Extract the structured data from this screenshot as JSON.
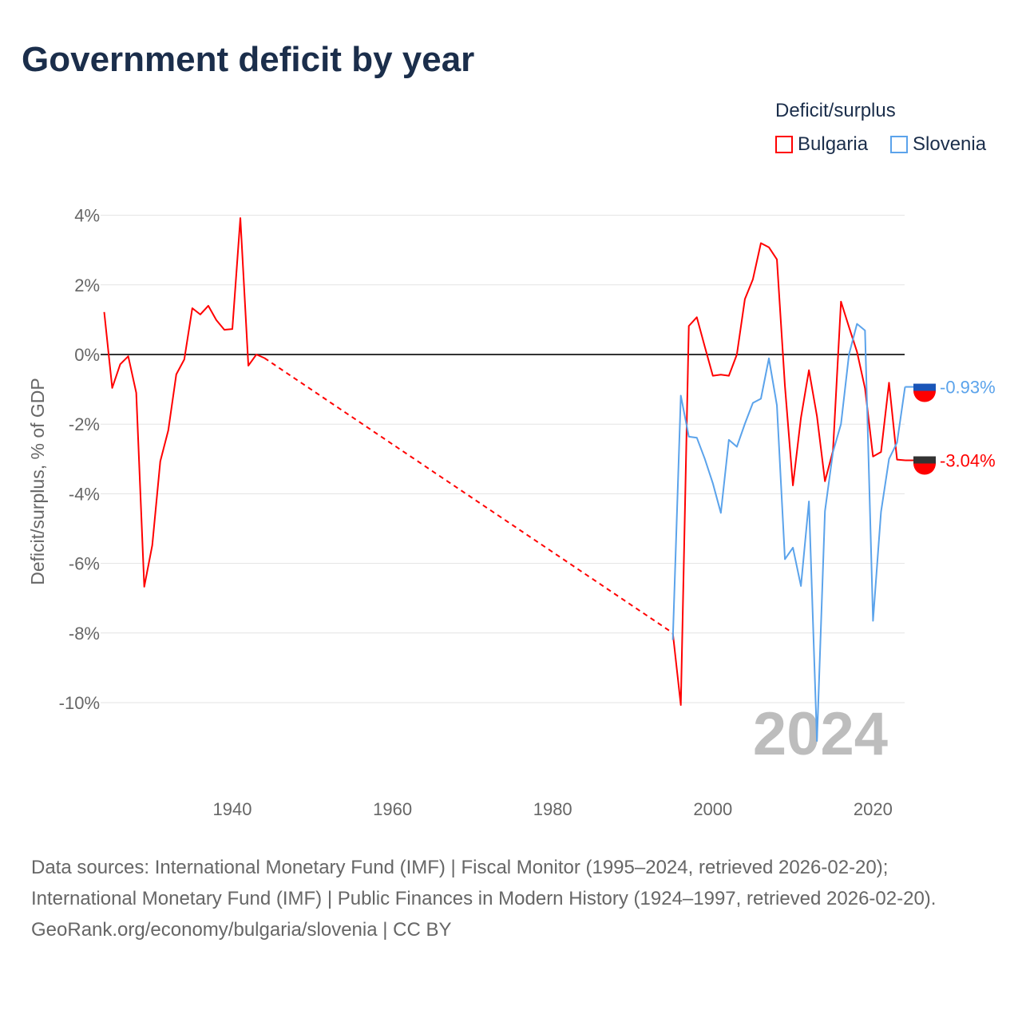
{
  "title": "Government deficit by year",
  "legend": {
    "title": "Deficit/surplus",
    "items": [
      {
        "name": "Bulgaria",
        "color": "#ff0000"
      },
      {
        "name": "Slovenia",
        "color": "#5ba3eb"
      }
    ]
  },
  "footer": {
    "sources": "Data sources: International Monetary Fund (IMF) | Fiscal Monitor (1995–2024, retrieved 2026-02-20); International Monetary Fund (IMF) | Public Finances in Modern History (1924–1997, retrieved 2026-02-20).",
    "credit": "GeoRank.org/economy/bulgaria/slovenia | CC BY"
  },
  "chart_data": {
    "type": "line",
    "title": "Government deficit by year",
    "ylabel": "Deficit/surplus, % of GDP",
    "xlabel": "",
    "year_label": "2024",
    "ylim": [
      -12,
      4.5
    ],
    "xlim": [
      1924,
      2024
    ],
    "yticks": [
      4,
      2,
      0,
      -2,
      -4,
      -6,
      -8,
      -10
    ],
    "ytick_labels": [
      "4%",
      "2%",
      "0%",
      "-2%",
      "-4%",
      "-6%",
      "-8%",
      "-10%"
    ],
    "xticks": [
      1940,
      1960,
      1980,
      2000,
      2020
    ],
    "xtick_labels": [
      "1940",
      "1960",
      "1980",
      "2000",
      "2020"
    ],
    "grid": true,
    "legend_position": "top-right",
    "series": [
      {
        "name": "Bulgaria",
        "color": "#ff0000",
        "end_label": "-3.04%",
        "gap": [
          1944,
          1995
        ],
        "x": [
          1924,
          1925,
          1926,
          1927,
          1928,
          1929,
          1930,
          1931,
          1932,
          1933,
          1934,
          1935,
          1936,
          1937,
          1938,
          1939,
          1940,
          1941,
          1942,
          1943,
          1944,
          1995,
          1996,
          1997,
          1998,
          1999,
          2000,
          2001,
          2002,
          2003,
          2004,
          2005,
          2006,
          2007,
          2008,
          2009,
          2010,
          2011,
          2012,
          2013,
          2014,
          2015,
          2016,
          2017,
          2018,
          2019,
          2020,
          2021,
          2022,
          2023,
          2024
        ],
        "y": [
          1.22,
          -0.96,
          -0.28,
          -0.05,
          -1.1,
          -6.67,
          -5.48,
          -3.07,
          -2.18,
          -0.57,
          -0.14,
          1.33,
          1.15,
          1.4,
          0.99,
          0.71,
          0.73,
          3.92,
          -0.32,
          0.0,
          -0.1,
          -8.0,
          -10.07,
          0.82,
          1.07,
          0.22,
          -0.61,
          -0.58,
          -0.61,
          0.0,
          1.59,
          2.16,
          3.2,
          3.08,
          2.73,
          -0.9,
          -3.76,
          -1.82,
          -0.45,
          -1.77,
          -3.64,
          -2.77,
          1.52,
          0.79,
          0.08,
          -0.97,
          -2.93,
          -2.8,
          -0.81,
          -3.02,
          -3.04
        ]
      },
      {
        "name": "Slovenia",
        "color": "#5ba3eb",
        "end_label": "-0.93%",
        "x": [
          1995,
          1996,
          1997,
          1998,
          1999,
          2000,
          2001,
          2002,
          2003,
          2004,
          2005,
          2006,
          2007,
          2008,
          2009,
          2010,
          2011,
          2012,
          2013,
          2014,
          2015,
          2016,
          2017,
          2018,
          2019,
          2020,
          2021,
          2022,
          2023,
          2024
        ],
        "y": [
          -8.2,
          -1.18,
          -2.36,
          -2.39,
          -3.0,
          -3.7,
          -4.55,
          -2.45,
          -2.65,
          -1.99,
          -1.39,
          -1.27,
          -0.11,
          -1.46,
          -5.88,
          -5.55,
          -6.65,
          -4.22,
          -11.1,
          -4.5,
          -2.8,
          -2.0,
          0.0,
          0.88,
          0.69,
          -7.65,
          -4.52,
          -3.0,
          -2.53,
          -0.93
        ]
      }
    ]
  }
}
